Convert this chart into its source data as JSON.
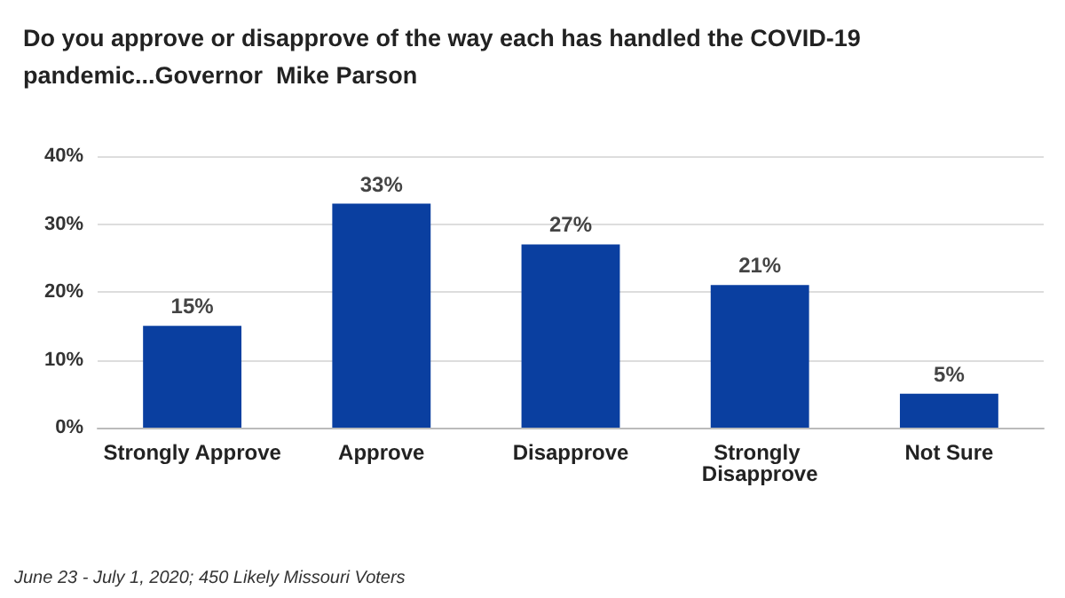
{
  "chart_data": {
    "type": "bar",
    "title": "Do you approve or disapprove of the way each has handled the COVID-19 pandemic...Governor  Mike Parson",
    "categories": [
      "Strongly Approve",
      "Approve",
      "Disapprove",
      "Strongly Disapprove",
      "Not Sure"
    ],
    "values": [
      15,
      33,
      27,
      21,
      5
    ],
    "value_labels": [
      "15%",
      "33%",
      "27%",
      "21%",
      "5%"
    ],
    "color": "#0a3fa0",
    "ylim": [
      0,
      40
    ],
    "yticks": [
      {
        "value": 0,
        "label": "0%"
      },
      {
        "value": 10,
        "label": "10%"
      },
      {
        "value": 20,
        "label": "20%"
      },
      {
        "value": 30,
        "label": "30%"
      },
      {
        "value": 40,
        "label": "40%"
      }
    ],
    "grid": "y",
    "annotations": [
      "June 23 - July 1, 2020; 450 Likely Missouri Voters"
    ]
  }
}
